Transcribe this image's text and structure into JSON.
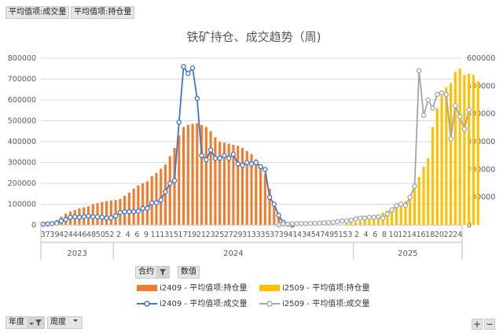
{
  "pivot_buttons": {
    "values_volume": "平均值项:成交量",
    "values_position": "平均值项:持仓量",
    "contract_label": "合约",
    "values_label": "数值",
    "year_label": "年度",
    "week_label": "周度",
    "expand": "+",
    "collapse": "−"
  },
  "colors": {
    "i2409_bar": "#ED7D31",
    "i2509_bar": "#FFC000",
    "i2409_line": "#4472C4",
    "i2509_line": "#A5A5A5"
  },
  "chart_data": {
    "type": "bar+line",
    "title": "铁矿持仓、成交趋势（周)",
    "left_axis": {
      "min": 0,
      "max": 800000,
      "step": 100000,
      "ticks": [
        "0",
        "100000",
        "200000",
        "300000",
        "400000",
        "500000",
        "600000",
        "700000",
        "800000"
      ]
    },
    "right_axis": {
      "min": 0,
      "max": 600000,
      "step": 100000,
      "ticks": [
        "0",
        "100000",
        "200000",
        "300000",
        "400000",
        "500000",
        "600000"
      ]
    },
    "x_axis_labels": [
      "37",
      "39",
      "42",
      "44",
      "46",
      "48",
      "50",
      "52",
      "2",
      "4",
      "6",
      "9",
      "11",
      "13",
      "15",
      "17",
      "19",
      "21",
      "23",
      "25",
      "27",
      "29",
      "31",
      "33",
      "35",
      "37",
      "39",
      "41",
      "43",
      "45",
      "47",
      "49",
      "51",
      "53",
      "2",
      "4",
      "6",
      "8",
      "10",
      "12",
      "14",
      "16",
      "18",
      "20",
      "22",
      "24"
    ],
    "year_labels": [
      {
        "year": "2023",
        "from": 0,
        "to": 15
      },
      {
        "year": "2024",
        "from": 16,
        "to": 68
      },
      {
        "year": "2025",
        "from": 69,
        "to": 92
      }
    ],
    "legend": [
      {
        "name": "i2409 - 平均值项:持仓量",
        "type": "bar"
      },
      {
        "name": "i2509 - 平均值项:持仓量",
        "type": "bar"
      },
      {
        "name": "i2409 - 平均值项:成交量",
        "type": "line"
      },
      {
        "name": "i2509 - 平均值项:成交量",
        "type": "line"
      }
    ],
    "bars_i2409": [
      5000,
      8000,
      15000,
      25000,
      40000,
      55000,
      65000,
      72000,
      80000,
      85000,
      90000,
      100000,
      105000,
      110000,
      115000,
      118000,
      120000,
      125000,
      140000,
      155000,
      175000,
      190000,
      200000,
      210000,
      235000,
      250000,
      270000,
      290000,
      330000,
      370000,
      430000,
      470000,
      480000,
      485000,
      488000,
      480000,
      470000,
      450000,
      420000,
      400000,
      395000,
      390000,
      385000,
      380000,
      370000,
      355000,
      340000,
      315000,
      285000,
      245000,
      175000,
      110000,
      50000,
      18000,
      5000,
      0,
      0,
      0,
      0,
      0,
      0,
      0,
      0,
      0,
      0,
      0,
      0,
      0,
      0,
      0,
      0,
      0,
      0,
      0,
      0,
      0,
      0,
      0,
      0,
      0,
      0,
      0,
      0,
      0,
      0,
      0,
      0,
      0,
      0,
      0,
      0,
      0,
      0
    ],
    "bars_i2509": [
      0,
      0,
      0,
      0,
      0,
      0,
      0,
      0,
      0,
      0,
      0,
      0,
      0,
      0,
      0,
      0,
      0,
      0,
      0,
      0,
      0,
      0,
      0,
      0,
      0,
      0,
      0,
      0,
      0,
      0,
      0,
      0,
      0,
      0,
      0,
      0,
      0,
      0,
      0,
      0,
      0,
      0,
      0,
      0,
      0,
      0,
      0,
      0,
      0,
      0,
      0,
      0,
      0,
      0,
      0,
      0,
      0,
      0,
      0,
      0,
      0,
      0,
      0,
      0,
      0,
      0,
      0,
      10000,
      12000,
      15000,
      20000,
      25000,
      30000,
      40000,
      50000,
      60000,
      70000,
      80000,
      90000,
      100000,
      115000,
      140000,
      180000,
      230000,
      280000,
      320000,
      470000,
      560000,
      620000,
      660000,
      680000,
      735000,
      750000,
      720000,
      725000,
      720000,
      690000
    ],
    "line_i2409": [
      3000,
      4000,
      5000,
      7000,
      15000,
      20000,
      28000,
      30000,
      28000,
      30000,
      33000,
      30000,
      30000,
      28000,
      25000,
      26000,
      33000,
      45000,
      48000,
      48000,
      48000,
      50000,
      60000,
      60000,
      80000,
      80000,
      90000,
      120000,
      150000,
      160000,
      370000,
      570000,
      545000,
      565000,
      455000,
      250000,
      235000,
      270000,
      240000,
      240000,
      250000,
      240000,
      255000,
      220000,
      215000,
      225000,
      220000,
      225000,
      210000,
      200000,
      100000,
      75000,
      35000,
      10000,
      3000,
      0,
      0,
      0,
      0,
      0,
      0,
      0,
      0,
      0,
      0,
      0,
      0,
      0,
      0,
      0,
      0,
      0,
      0,
      0,
      0,
      0,
      0,
      0,
      0,
      0,
      0,
      0,
      0,
      0,
      0,
      0,
      0,
      0,
      0,
      0,
      0,
      0,
      0
    ],
    "line_i2509": [
      0,
      0,
      0,
      0,
      0,
      0,
      0,
      0,
      0,
      0,
      0,
      0,
      0,
      0,
      0,
      0,
      0,
      0,
      0,
      0,
      0,
      0,
      0,
      0,
      0,
      0,
      0,
      0,
      0,
      0,
      0,
      0,
      0,
      0,
      0,
      0,
      0,
      0,
      0,
      0,
      0,
      0,
      0,
      0,
      0,
      0,
      0,
      0,
      0,
      0,
      0,
      0,
      0,
      3000,
      3000,
      4000,
      5000,
      5000,
      5000,
      6000,
      6000,
      7000,
      8000,
      9000,
      10000,
      12000,
      15000,
      15000,
      18000,
      22000,
      25000,
      25000,
      28000,
      28000,
      30000,
      25000,
      40000,
      55000,
      70000,
      75000,
      70000,
      100000,
      140000,
      555000,
      395000,
      450000,
      420000,
      470000,
      475000,
      470000,
      310000,
      430000,
      390000,
      345000,
      415000
    ]
  }
}
